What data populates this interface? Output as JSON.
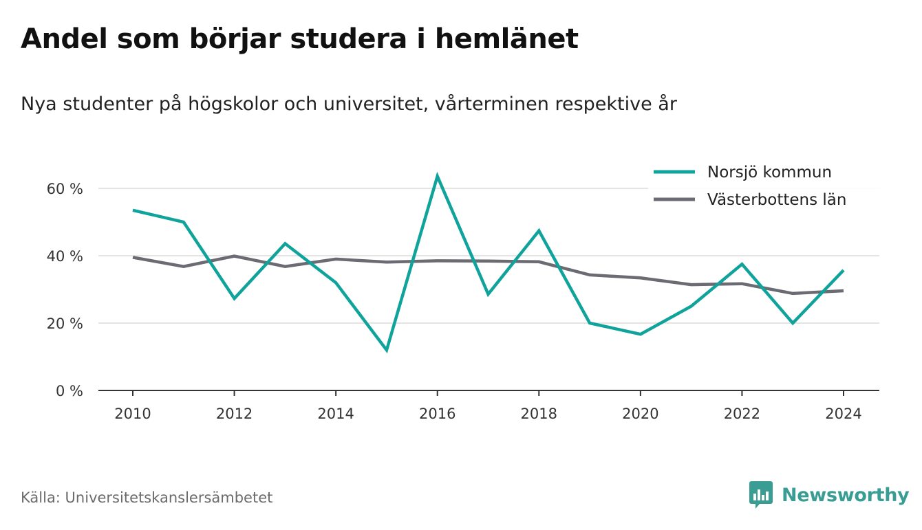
{
  "title": "Andel som börjar studera i hemlänet",
  "subtitle": "Nya studenter på högskolor och universitet, vårterminen respektive år",
  "source": "Källa: Universitetskanslersämbetet",
  "brand": {
    "name": "Newsworthy",
    "icon": "newsworthy-logo-icon",
    "color": "#3a9d94"
  },
  "chart_data": {
    "type": "line",
    "x": [
      2010,
      2011,
      2012,
      2013,
      2014,
      2015,
      2016,
      2017,
      2018,
      2019,
      2020,
      2021,
      2022,
      2023,
      2024
    ],
    "x_ticks": [
      "2010",
      "2012",
      "2014",
      "2016",
      "2018",
      "2020",
      "2022",
      "2024"
    ],
    "y_ticks": [
      "0 %",
      "20 %",
      "40 %",
      "60 %"
    ],
    "ylim": [
      0,
      60
    ],
    "xlim": [
      2010,
      2024
    ],
    "grid": true,
    "legend_position": "top-right",
    "series": [
      {
        "name": "Norsjö kommun",
        "color": "#0fa39b",
        "values": [
          53.5,
          50.0,
          27.3,
          43.6,
          32.0,
          12.0,
          63.6,
          28.6,
          47.4,
          20.0,
          16.7,
          25.0,
          37.5,
          20.0,
          35.7
        ]
      },
      {
        "name": "Västerbottens län",
        "color": "#6b6b73",
        "values": [
          39.5,
          36.8,
          39.9,
          36.8,
          39.0,
          38.1,
          38.5,
          38.4,
          38.2,
          34.3,
          33.4,
          31.4,
          31.7,
          28.8,
          29.6
        ]
      }
    ]
  }
}
